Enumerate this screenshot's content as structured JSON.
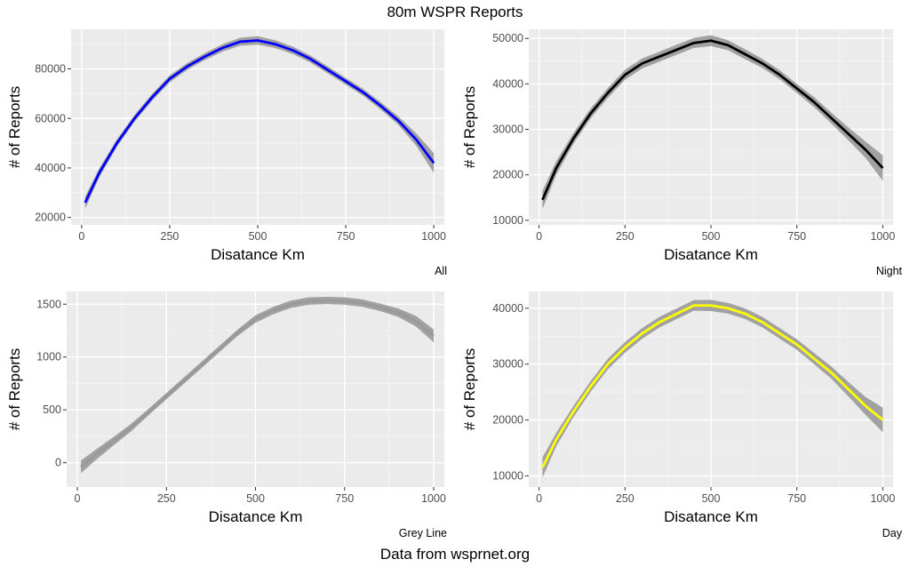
{
  "figure": {
    "title": "80m WSPR Reports",
    "caption": "Data from wsprnet.org"
  },
  "chart_data": [
    {
      "type": "line",
      "caption": "All",
      "xlabel": "Disatance Km",
      "ylabel": "# of Reports",
      "xlim": [
        -30,
        1030
      ],
      "ylim": [
        17000,
        96000
      ],
      "xticks": [
        0,
        250,
        500,
        750,
        1000
      ],
      "yticks": [
        20000,
        40000,
        60000,
        80000
      ],
      "grid": true,
      "line_color": "#0000ff",
      "band_color": "#999999",
      "x": [
        10,
        50,
        100,
        150,
        200,
        250,
        300,
        350,
        400,
        450,
        500,
        550,
        600,
        650,
        700,
        750,
        800,
        850,
        900,
        950,
        1000
      ],
      "y": [
        26000,
        38000,
        50000,
        60000,
        68500,
        76000,
        81000,
        85000,
        88500,
        91000,
        91500,
        90000,
        87500,
        84000,
        79500,
        75000,
        70500,
        65000,
        59000,
        51500,
        42000
      ],
      "band": [
        2500,
        1800,
        1500,
        1400,
        1400,
        1400,
        1400,
        1400,
        1500,
        1600,
        1700,
        1600,
        1500,
        1400,
        1400,
        1400,
        1400,
        1500,
        1700,
        2500,
        4000
      ]
    },
    {
      "type": "line",
      "caption": "Night",
      "xlabel": "Disatance Km",
      "ylabel": "# of Reports",
      "xlim": [
        -30,
        1030
      ],
      "ylim": [
        9000,
        52000
      ],
      "xticks": [
        0,
        250,
        500,
        750,
        1000
      ],
      "yticks": [
        10000,
        20000,
        30000,
        40000,
        50000
      ],
      "grid": true,
      "line_color": "#000000",
      "band_color": "#999999",
      "x": [
        10,
        50,
        100,
        150,
        200,
        250,
        300,
        350,
        400,
        450,
        500,
        550,
        600,
        650,
        700,
        750,
        800,
        850,
        900,
        950,
        1000
      ],
      "y": [
        14500,
        21500,
        28000,
        33500,
        38000,
        42000,
        44500,
        46000,
        47500,
        49000,
        49500,
        48500,
        46500,
        44500,
        42000,
        39000,
        36000,
        32500,
        29000,
        25500,
        21500
      ],
      "band": [
        2000,
        1500,
        1200,
        1100,
        1100,
        1100,
        1100,
        1100,
        1100,
        1100,
        1200,
        1100,
        1100,
        1000,
        1000,
        1000,
        1100,
        1200,
        1400,
        1800,
        2800
      ]
    },
    {
      "type": "line",
      "caption": "Grey Line",
      "xlabel": "Disatance Km",
      "ylabel": "# of Reports",
      "xlim": [
        -30,
        1030
      ],
      "ylim": [
        -230,
        1620
      ],
      "xticks": [
        0,
        250,
        500,
        750,
        1000
      ],
      "yticks": [
        0,
        500,
        1000,
        1500
      ],
      "grid": true,
      "line_color": "#999999",
      "band_color": "#999999",
      "x": [
        10,
        50,
        100,
        150,
        200,
        250,
        300,
        350,
        400,
        450,
        500,
        550,
        600,
        650,
        700,
        750,
        800,
        850,
        900,
        950,
        1000
      ],
      "y": [
        -40,
        70,
        200,
        330,
        480,
        630,
        780,
        930,
        1080,
        1230,
        1360,
        1440,
        1500,
        1530,
        1535,
        1530,
        1510,
        1470,
        1420,
        1340,
        1200
      ],
      "band": [
        60,
        50,
        40,
        35,
        30,
        30,
        30,
        30,
        30,
        30,
        35,
        35,
        35,
        35,
        35,
        35,
        35,
        35,
        40,
        50,
        60
      ]
    },
    {
      "type": "line",
      "caption": "Day",
      "xlabel": "Disatance Km",
      "ylabel": "# of Reports",
      "xlim": [
        -30,
        1030
      ],
      "ylim": [
        8000,
        43000
      ],
      "xticks": [
        0,
        250,
        500,
        750,
        1000
      ],
      "yticks": [
        10000,
        20000,
        30000,
        40000
      ],
      "grid": true,
      "line_color": "#ffff00",
      "band_color": "#999999",
      "x": [
        10,
        50,
        100,
        150,
        200,
        250,
        300,
        350,
        400,
        450,
        500,
        550,
        600,
        650,
        700,
        750,
        800,
        850,
        900,
        950,
        1000
      ],
      "y": [
        11500,
        16500,
        21500,
        26000,
        30000,
        33000,
        35500,
        37500,
        39000,
        40500,
        40500,
        40000,
        39000,
        37500,
        35500,
        33500,
        31000,
        28500,
        25500,
        22500,
        20000
      ],
      "band": [
        1800,
        1200,
        1000,
        950,
        950,
        950,
        950,
        950,
        950,
        950,
        1000,
        950,
        950,
        950,
        950,
        950,
        1000,
        1100,
        1300,
        1600,
        2200
      ]
    }
  ]
}
